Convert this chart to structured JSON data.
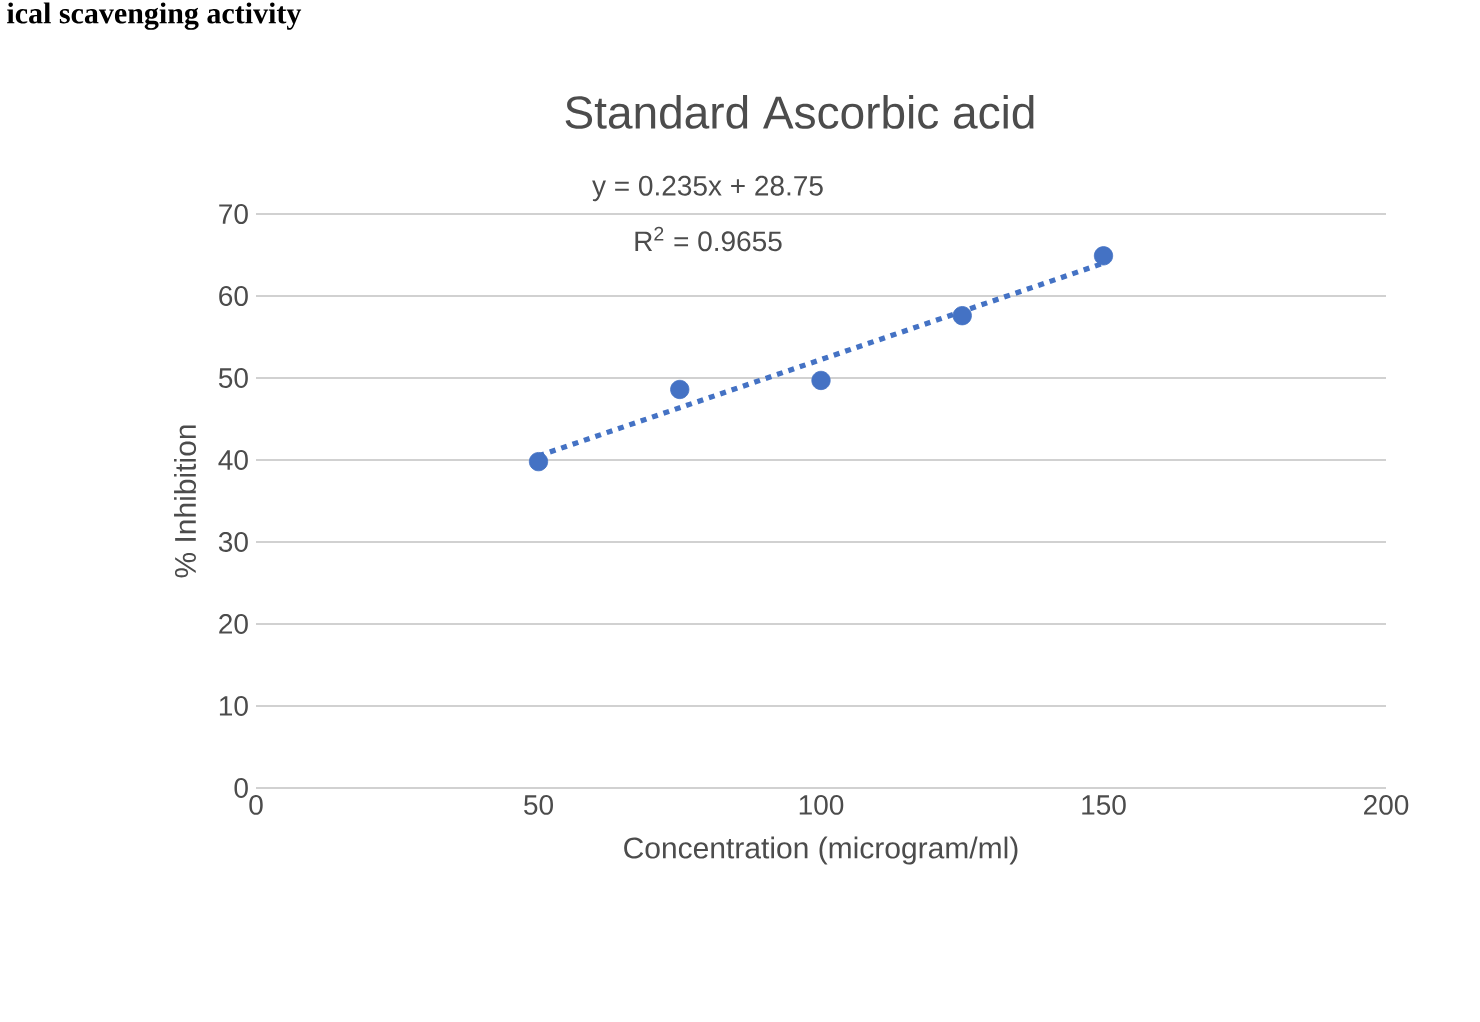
{
  "chart_data": {
    "type": "scatter",
    "title": "Standard Ascorbic acid",
    "xlabel": "Concentration (microgram/ml)",
    "ylabel": "% Inhibition",
    "annotations": [
      "ical scavenging activity",
      "y = 0.235x + 28.75",
      "R$^{2}$ = 0.9655"
    ],
    "x": [
      50,
      75,
      100,
      125,
      150
    ],
    "series": [
      {
        "color": "#4472c4",
        "marker": "circle",
        "values": [
          39.8,
          48.6,
          49.7,
          57.6,
          64.9
        ]
      },
      {
        "type": "line",
        "color": "#4472c4",
        "marker": "none",
        "line_style": "dotted",
        "x": [
          50,
          150
        ],
        "values": [
          40.5,
          64.0
        ]
      }
    ],
    "xlim": [
      0,
      200
    ],
    "xticks": [
      0,
      50,
      100,
      150,
      200
    ],
    "ylim": [
      0,
      70
    ],
    "yticks": [
      0,
      10,
      20,
      30,
      40,
      50,
      60,
      70
    ],
    "grid": "y"
  }
}
